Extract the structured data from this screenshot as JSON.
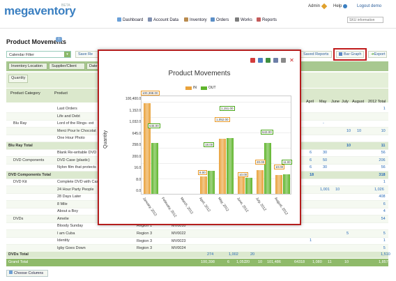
{
  "header": {
    "logo_main": "megaventory",
    "logo_e": "",
    "beta": "BETA",
    "admin": "Admin",
    "help": "Help",
    "logout": "Logout demo",
    "nav": [
      "Dashboard",
      "Account Data",
      "Inventory",
      "Orders",
      "Works",
      "Reports"
    ],
    "sku_placeholder": "SKU information"
  },
  "page": {
    "title": "Product Movements",
    "badge": "i"
  },
  "toolbar": {
    "filter": "Calendar Filter",
    "save_report": "Save Re",
    "saved_reports": "Saved Reports",
    "bar_graph": "Bar Graph",
    "export": "Export"
  },
  "grid": {
    "chips": [
      "Inventory Location",
      "Supplier/Client",
      "Date"
    ],
    "quantity": "Quantity",
    "product_category": "Product Category",
    "product": "Product",
    "months": [
      "April",
      "May",
      "June",
      "July",
      "August"
    ],
    "total_head": "2012 Total",
    "rows": [
      {
        "cat": "",
        "prod": "Last Orders",
        "v": [
          "",
          "",
          "",
          "",
          ""
        ],
        "t": "1"
      },
      {
        "cat": "",
        "prod": "Life and Debt",
        "v": [
          "",
          "",
          "",
          "",
          ""
        ],
        "t": ""
      },
      {
        "cat": "Blu Ray",
        "prod": "Lord of the Rings- ext",
        "v": [
          "",
          "-",
          "",
          "",
          ""
        ],
        "t": ""
      },
      {
        "cat": "",
        "prod": "Merci Pour le Chocolat",
        "v": [
          "",
          "",
          "",
          "10",
          "10"
        ],
        "t": "10"
      },
      {
        "cat": "",
        "prod": "One Hour Photo",
        "v": [
          "",
          "",
          "",
          "",
          ""
        ],
        "t": ""
      },
      {
        "cat": "Blu Ray Total",
        "prod": "",
        "v": [
          "",
          "",
          "",
          "10",
          ""
        ],
        "t": "11",
        "total": true
      },
      {
        "cat": "",
        "prod": "Blank Re-writable DVD",
        "v": [
          "6",
          "30",
          "",
          "",
          ""
        ],
        "t": "56"
      },
      {
        "cat": "DVD Components",
        "prod": "DVD Case (plastic)",
        "v": [
          "6",
          "50",
          "",
          "",
          ""
        ],
        "t": "206"
      },
      {
        "cat": "",
        "prod": "Nylon film that protects",
        "v": [
          "6",
          "30",
          "",
          "",
          ""
        ],
        "t": "56"
      },
      {
        "cat": "DVD Components Total",
        "prod": "",
        "v": [
          "18",
          "",
          "",
          "",
          ""
        ],
        "t": "318",
        "total": true
      },
      {
        "cat": "DVD Kit",
        "prod": "Complete DVD with Cas",
        "v": [
          "",
          "",
          "",
          "",
          ""
        ],
        "t": "1"
      },
      {
        "cat": "",
        "prod": "24 Hour Party People",
        "v": [
          "",
          "1,001",
          "10",
          "",
          ""
        ],
        "t": "1,026"
      },
      {
        "cat": "",
        "prod": "28 Days Later",
        "v": [
          "",
          "",
          "",
          "",
          ""
        ],
        "t": "408"
      },
      {
        "cat": "",
        "prod": "8 Mile",
        "v": [
          "",
          "",
          "",
          "",
          ""
        ],
        "t": "6"
      },
      {
        "cat": "",
        "prod": "About a Boy",
        "v": [
          "",
          "",
          "",
          "",
          ""
        ],
        "t": "4"
      },
      {
        "cat": "DVDs",
        "prod": "Amelie",
        "v": [
          "",
          "",
          "",
          "",
          ""
        ],
        "t": "54"
      },
      {
        "cat": "",
        "prod": "Bloody Sunday",
        "v": [
          "",
          "",
          "",
          "",
          ""
        ],
        "t": ""
      },
      {
        "cat": "",
        "prod": "I am Cuba",
        "v": [
          "",
          "",
          "",
          "5",
          ""
        ],
        "t": "5"
      },
      {
        "cat": "",
        "prod": "Identity",
        "v": [
          "1",
          "",
          "",
          "",
          ""
        ],
        "t": "1"
      },
      {
        "cat": "",
        "prod": "Igby Goes Down",
        "v": [
          "",
          "",
          "",
          "",
          ""
        ],
        "t": "5"
      },
      {
        "cat": "DVDs Total",
        "prod": "",
        "v": [
          "",
          "",
          "",
          "",
          ""
        ],
        "t": "1,510",
        "total": true
      }
    ],
    "region_rows": [
      {
        "region": "Region 3",
        "code": "MV0022",
        "top": 330
      },
      {
        "region": "Region 3",
        "code": "MV0023",
        "top": 341
      },
      {
        "region": "Region 3",
        "code": "MV0024",
        "top": 351
      }
    ],
    "region_partial": {
      "region": "Region 1",
      "code": "MV0010"
    },
    "dvds_total_mid": [
      "274",
      "",
      "1,002",
      "20"
    ],
    "grand_total_label": "Grand Total",
    "grand_total_vals": [
      "100,398",
      "6",
      "1,052",
      "20",
      "10",
      "101,486",
      "643",
      "18",
      "1,080",
      "11",
      "10",
      "1,857"
    ],
    "choose_columns": "Choose Columns"
  },
  "modal": {
    "title": "Product Movements",
    "legend": [
      {
        "name": "IN",
        "color": "#e9a23b"
      },
      {
        "name": "OUT",
        "color": "#5fb52c"
      }
    ],
    "ylabel": "Quantity",
    "yticks": [
      "100,400.00",
      "1,152.00",
      "1,032.00",
      "645.00",
      "258.00",
      "200.00",
      "16.00",
      "8.00",
      "0.00"
    ],
    "chart_data": {
      "type": "bar",
      "title": "Product Movements",
      "ylabel": "Quantity",
      "categories": [
        "January, 2012",
        "February, 2012",
        "March, 2012",
        "April, 2012",
        "May, 2012",
        "June, 2012",
        "July, 2012",
        "August, 2012"
      ],
      "series": [
        {
          "name": "IN",
          "values": [
            100398,
            0,
            0,
            8,
            1052,
            10,
            20,
            10
          ]
        },
        {
          "name": "OUT",
          "values": [
            645,
            0,
            0,
            18,
            1151,
            7,
            643,
            11
          ]
        }
      ]
    },
    "data_labels": [
      {
        "t": "100,398.00",
        "s": "in",
        "x": 60,
        "y": 57
      },
      {
        "t": "645.00",
        "s": "out",
        "x": 70,
        "y": 104
      },
      {
        "t": "18.00",
        "s": "out",
        "x": 150,
        "y": 131
      },
      {
        "t": "8.00",
        "s": "in",
        "x": 142,
        "y": 171
      },
      {
        "t": "1,151.00",
        "s": "out",
        "x": 173,
        "y": 79
      },
      {
        "t": "1,052.00",
        "s": "in",
        "x": 166,
        "y": 95
      },
      {
        "t": "10.00",
        "s": "in",
        "x": 199,
        "y": 174
      },
      {
        "t": "20.00",
        "s": "in",
        "x": 224,
        "y": 156
      },
      {
        "t": "643.00",
        "s": "out",
        "x": 232,
        "y": 113
      },
      {
        "t": "10.00",
        "s": "in",
        "x": 251,
        "y": 163
      },
      {
        "t": "11.00",
        "s": "out",
        "x": 262,
        "y": 156
      }
    ]
  }
}
